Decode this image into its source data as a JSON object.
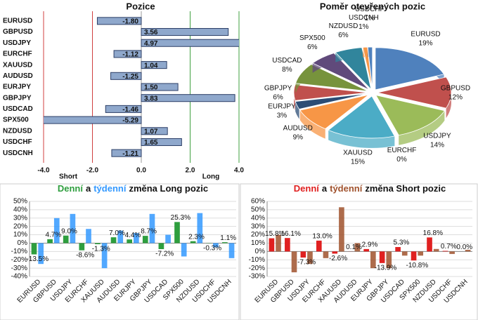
{
  "chart_data": [
    {
      "type": "bar",
      "orientation": "horizontal",
      "title": "Pozice",
      "categories": [
        "EURUSD",
        "GBPUSD",
        "USDJPY",
        "EURCHF",
        "XAUUSD",
        "AUDUSD",
        "EURJPY",
        "GBPJPY",
        "USDCAD",
        "SPX500",
        "NZDUSD",
        "USDCHF",
        "USDCNH"
      ],
      "values": [
        -1.8,
        3.56,
        4.97,
        -1.12,
        1.04,
        -1.25,
        1.5,
        3.83,
        -1.46,
        -5.29,
        1.07,
        1.65,
        -1.21
      ],
      "value_labels": [
        "-1.80",
        "3.56",
        "4.97",
        "-1.12",
        "1.04",
        "-1.25",
        "1.50",
        "3.83",
        "-1.46",
        "-5.29",
        "1.07",
        "1.65",
        "-1.21"
      ],
      "color": "#8fa8cc",
      "xlim": [
        -4,
        4
      ],
      "xticks": [
        {
          "value": -4,
          "label": "-4.0"
        },
        {
          "value": -2,
          "label": "-2.0"
        },
        {
          "value": 0,
          "label": "0.0"
        },
        {
          "value": 2,
          "label": "2.0"
        },
        {
          "value": 4,
          "label": "4.0"
        }
      ],
      "annotations": [
        "Short",
        "Long"
      ]
    },
    {
      "type": "pie",
      "title": "Poměr otevřených pozic",
      "categories": [
        "EURUSD",
        "GBPUSD",
        "USDJPY",
        "EURCHF",
        "XAUUSD",
        "AUDUSD",
        "EURJPY",
        "GBPJPY",
        "USDCAD",
        "SPX500",
        "NZDUSD",
        "USDCNH",
        "USDCHF"
      ],
      "values": [
        19,
        12,
        14,
        0,
        15,
        9,
        3,
        6,
        8,
        6,
        6,
        1,
        1
      ],
      "value_labels": [
        "19%",
        "12%",
        "14%",
        "0%",
        "15%",
        "9%",
        "3%",
        "6%",
        "8%",
        "6%",
        "6%",
        "1%",
        "1%"
      ],
      "colors": [
        "#4f81bd",
        "#c0504d",
        "#9bbb59",
        "#8064a2",
        "#4bacc6",
        "#f79646",
        "#2c4d75",
        "#c0504d",
        "#77933c",
        "#604a7b",
        "#31859c",
        "#f79646",
        "#4f81bd"
      ]
    },
    {
      "type": "bar",
      "title_link": "a",
      "title_rest": "změna Long pozic",
      "categories": [
        "EURUSD",
        "GBPUSD",
        "USDJPY",
        "EURCHF",
        "XAUUSD",
        "AUDUSD",
        "EURJPY",
        "GBPJPY",
        "USDCAD",
        "SPX500",
        "NZDUSD",
        "USDCHF",
        "USDCNH"
      ],
      "series": [
        {
          "name": "Denní",
          "color": "#2e9e3e",
          "values": [
            -13.5,
            4.7,
            9.0,
            -8.6,
            -1.3,
            7.0,
            4.4,
            8.7,
            -7.2,
            25.3,
            2.3,
            -0.3,
            1.1
          ],
          "value_labels": [
            "-13.5%",
            "4.7%",
            "9.0%",
            "-8.6%",
            "-1.3%",
            "7.0%",
            "4.4%",
            "8.7%",
            "-7.2%",
            "25.3%",
            "2.3%",
            "-0.3%",
            "1.1%"
          ]
        },
        {
          "name": "týdenní",
          "color": "#3399ff",
          "values": [
            -25,
            30,
            35,
            17,
            -30,
            15,
            12,
            35,
            10,
            -16,
            36,
            -5,
            -18
          ]
        }
      ],
      "ylim": [
        -40,
        50
      ],
      "yticks": [
        {
          "value": -40,
          "label": "-40%"
        },
        {
          "value": -30,
          "label": "-30%"
        },
        {
          "value": -20,
          "label": "-20%"
        },
        {
          "value": -10,
          "label": "-10%"
        },
        {
          "value": 0,
          "label": "0%"
        },
        {
          "value": 10,
          "label": "10%"
        },
        {
          "value": 20,
          "label": "20%"
        },
        {
          "value": 30,
          "label": "30%"
        },
        {
          "value": 40,
          "label": "40%"
        },
        {
          "value": 50,
          "label": "50%"
        }
      ],
      "grid": true
    },
    {
      "type": "bar",
      "title_link": "a",
      "title_rest": "změna Short pozic",
      "categories": [
        "EURUSD",
        "GBPUSD",
        "USDJPY",
        "EURCHF",
        "XAUUSD",
        "AUDUSD",
        "EURJPY",
        "GBPJPY",
        "USDCAD",
        "SPX500",
        "NZDUSD",
        "USDCHF",
        "USDCNH"
      ],
      "series": [
        {
          "name": "Denní",
          "color": "#e02020",
          "values": [
            15.8,
            16.1,
            -7.3,
            13.0,
            -2.6,
            0.1,
            2.9,
            -13.9,
            5.3,
            -10.8,
            16.8,
            0.7,
            0.0
          ],
          "value_labels": [
            "15.8%",
            "16.1%",
            "-7.3%",
            "13.0%",
            "-2.6%",
            "0.1%",
            "2.9%",
            "-13.9%",
            "5.3%",
            "-10.8%",
            "16.8%",
            "0.7%",
            "0.0%"
          ]
        },
        {
          "name": "týdenní",
          "color": "#a0522d",
          "values": [
            20,
            -25,
            -15,
            -8,
            53,
            10,
            -20,
            -20,
            -5,
            -5,
            3,
            -3,
            2
          ]
        }
      ],
      "ylim": [
        -30,
        60
      ],
      "yticks": [
        {
          "value": -30,
          "label": "-30%"
        },
        {
          "value": -20,
          "label": "-20%"
        },
        {
          "value": -10,
          "label": "-10%"
        },
        {
          "value": 0,
          "label": "0%"
        },
        {
          "value": 10,
          "label": "10%"
        },
        {
          "value": 20,
          "label": "20%"
        },
        {
          "value": 30,
          "label": "30%"
        },
        {
          "value": 40,
          "label": "40%"
        },
        {
          "value": 50,
          "label": "50%"
        },
        {
          "value": 60,
          "label": "60%"
        }
      ],
      "grid": true
    }
  ]
}
